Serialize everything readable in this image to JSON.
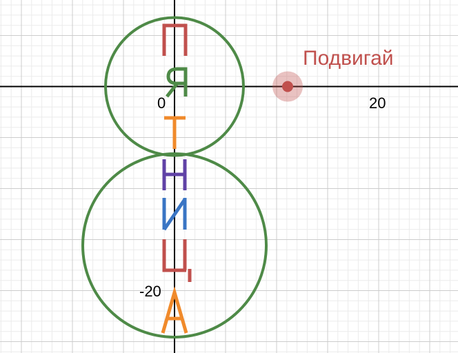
{
  "axis_labels": {
    "origin": "0",
    "x_20": "20",
    "y_neg_20": "-20"
  },
  "draggable_point": {
    "label": "Подвигай",
    "x": 11,
    "y": 0,
    "color": "#c0504d"
  },
  "colors": {
    "grid_minor": "#ebebeb",
    "grid_major": "#cccccc",
    "axis": "#000000",
    "circles": "#4e8a47",
    "letter_red": "#c0504d",
    "letter_green": "#4e8a47",
    "letter_orange": "#f08a2b",
    "letter_purple": "#6042a6",
    "letter_blue": "#3a75c4"
  },
  "circles": [
    {
      "cx": 0,
      "cy": 0,
      "r": 6.75
    },
    {
      "cx": 0,
      "cy": -15.5,
      "r": 9
    }
  ],
  "letters": [
    {
      "char": "П",
      "color": "letter_red"
    },
    {
      "char": "Я",
      "color": "letter_green"
    },
    {
      "char": "Т",
      "color": "letter_orange"
    },
    {
      "char": "Н",
      "color": "letter_purple"
    },
    {
      "char": "И",
      "color": "letter_blue"
    },
    {
      "char": "Ц",
      "color": "letter_red"
    },
    {
      "char": "А",
      "color": "letter_orange"
    }
  ]
}
